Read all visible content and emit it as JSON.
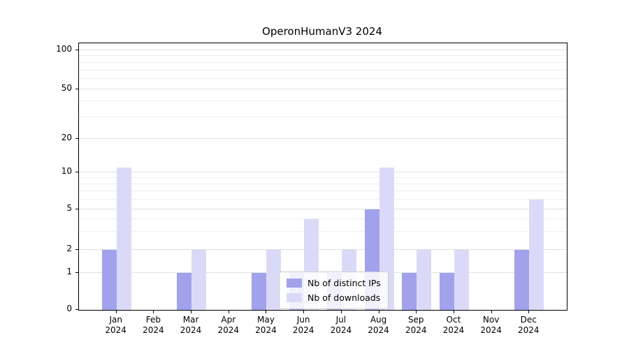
{
  "title": "OperonHumanV3 2024",
  "chart_data": {
    "type": "bar",
    "categories": [
      "Jan",
      "Feb",
      "Mar",
      "Apr",
      "May",
      "Jun",
      "Jul",
      "Aug",
      "Sep",
      "Oct",
      "Nov",
      "Dec"
    ],
    "year_label": "2024",
    "series": [
      {
        "name": "Nb of distinct IPs",
        "color": "#a2a2ec",
        "values": [
          2,
          0,
          1,
          0,
          1,
          1,
          1,
          5,
          1,
          1,
          0,
          2
        ]
      },
      {
        "name": "Nb of downloads",
        "color": "#dadaf8",
        "values": [
          11,
          0,
          2,
          0,
          2,
          4,
          2,
          11,
          2,
          2,
          0,
          6
        ]
      }
    ],
    "yticks": [
      0,
      1,
      2,
      5,
      10,
      20,
      50,
      100
    ],
    "minor_yticks": [
      3,
      4,
      6,
      7,
      8,
      9,
      30,
      40,
      60,
      70,
      80,
      90
    ],
    "ylim": [
      0,
      110
    ],
    "scale": "symlog",
    "grid": true,
    "legend_position": "lower center",
    "xlabel": "",
    "ylabel": ""
  }
}
